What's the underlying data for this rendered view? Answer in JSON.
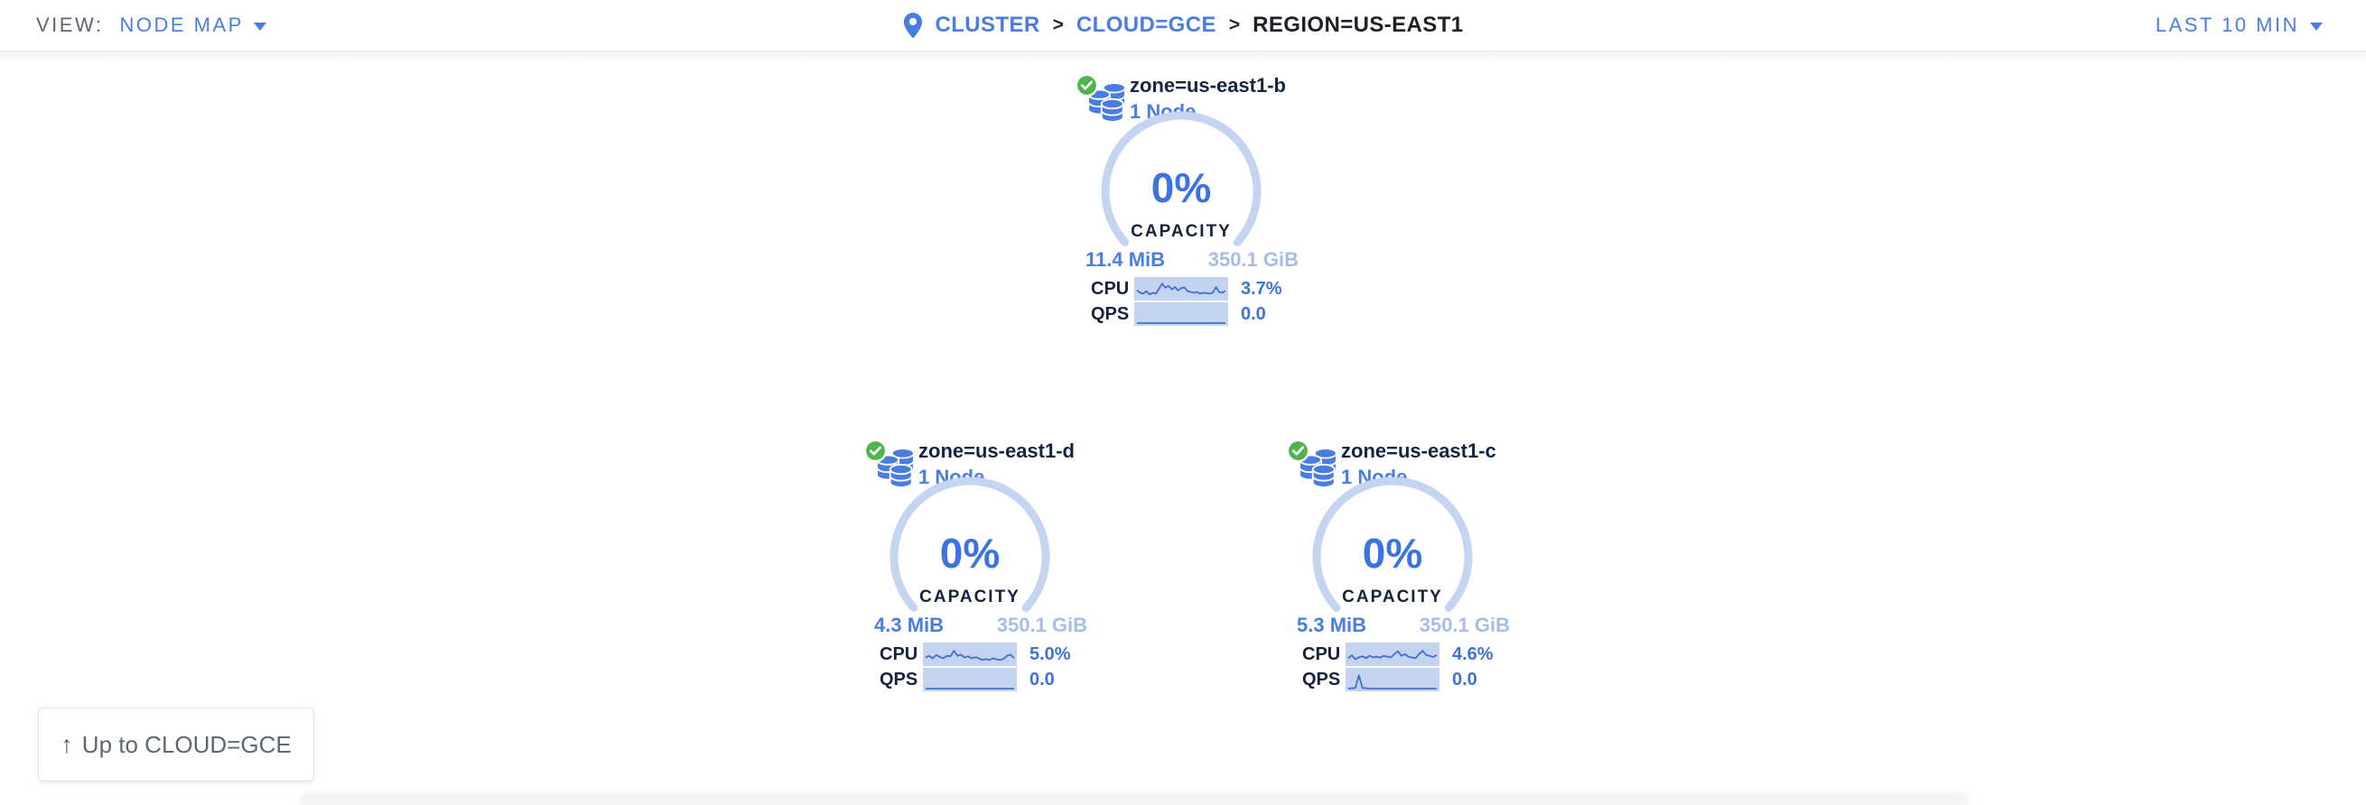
{
  "header": {
    "view_label": "VIEW:",
    "view_value": "NODE MAP",
    "separator": ">",
    "breadcrumb": [
      {
        "label": "CLUSTER"
      },
      {
        "label": "CLOUD=GCE"
      },
      {
        "label": "REGION=US-EAST1"
      }
    ],
    "time_range": "LAST 10 MIN"
  },
  "nodes": [
    {
      "title": "zone=us-east1-b",
      "subtitle": "1 Node",
      "status": "healthy",
      "capacity_pct": "0%",
      "capacity_label": "CAPACITY",
      "used": "11.4 MiB",
      "total": "350.1 GiB",
      "cpu_label": "CPU",
      "cpu_value": "3.7%",
      "qps_label": "QPS",
      "qps_value": "0.0",
      "cpu_spark": [
        0.45,
        0.3,
        0.25,
        0.4,
        0.2,
        0.3,
        0.25,
        0.55,
        0.85,
        0.6,
        0.72,
        0.5,
        0.65,
        0.45,
        0.58,
        0.62,
        0.4,
        0.35,
        0.3,
        0.35,
        0.25,
        0.3,
        0.28,
        0.26,
        0.3,
        0.65,
        0.35,
        0.3,
        0.42
      ],
      "qps_spark": [
        0,
        0,
        0,
        0,
        0,
        0,
        0,
        0,
        0,
        0,
        0,
        0,
        0,
        0,
        0,
        0,
        0,
        0,
        0,
        0,
        0,
        0,
        0,
        0,
        0,
        0
      ]
    },
    {
      "title": "zone=us-east1-d",
      "subtitle": "1 Node",
      "status": "healthy",
      "capacity_pct": "0%",
      "capacity_label": "CAPACITY",
      "used": "4.3 MiB",
      "total": "350.1 GiB",
      "cpu_label": "CPU",
      "cpu_value": "5.0%",
      "qps_label": "QPS",
      "qps_value": "0.0",
      "cpu_spark": [
        0.35,
        0.45,
        0.3,
        0.5,
        0.38,
        0.3,
        0.45,
        0.42,
        0.75,
        0.45,
        0.52,
        0.35,
        0.42,
        0.3,
        0.36,
        0.3,
        0.2,
        0.26,
        0.2,
        0.3,
        0.24,
        0.2,
        0.26,
        0.45,
        0.52,
        0.3
      ],
      "qps_spark": [
        0,
        0,
        0,
        0,
        0,
        0,
        0,
        0,
        0,
        0,
        0,
        0,
        0,
        0,
        0,
        0,
        0,
        0,
        0,
        0,
        0,
        0,
        0,
        0,
        0,
        0
      ]
    },
    {
      "title": "zone=us-east1-c",
      "subtitle": "1 Node",
      "status": "healthy",
      "capacity_pct": "0%",
      "capacity_label": "CAPACITY",
      "used": "5.3 MiB",
      "total": "350.1 GiB",
      "cpu_label": "CPU",
      "cpu_value": "4.6%",
      "qps_label": "QPS",
      "qps_value": "0.0",
      "cpu_spark": [
        0.3,
        0.48,
        0.25,
        0.36,
        0.42,
        0.3,
        0.46,
        0.35,
        0.4,
        0.34,
        0.45,
        0.4,
        0.35,
        0.55,
        0.72,
        0.45,
        0.55,
        0.4,
        0.35,
        0.3,
        0.55,
        0.75,
        0.5,
        0.45,
        0.38,
        0.5
      ],
      "qps_spark": [
        0,
        0.02,
        0.03,
        0.8,
        0.04,
        0.02,
        0,
        0,
        0,
        0,
        0,
        0,
        0,
        0,
        0,
        0,
        0,
        0,
        0,
        0,
        0,
        0,
        0,
        0,
        0,
        0
      ]
    }
  ],
  "up_button": {
    "label": "Up to CLOUD=GCE",
    "icon": "arrow-up"
  },
  "colors": {
    "accent_blue": "#4a7de2",
    "gauge_percent_blue": "#3b74e0",
    "gauge_arc_blue": "#c5d4f0",
    "total_capacity_blue": "#a7bde7",
    "navy_text": "#17233c",
    "spark_background": "#c4d3ef",
    "spark_line": "#3f6fd2",
    "healthy_green": "#4eb44c",
    "muted_gray": "#5c6670"
  }
}
